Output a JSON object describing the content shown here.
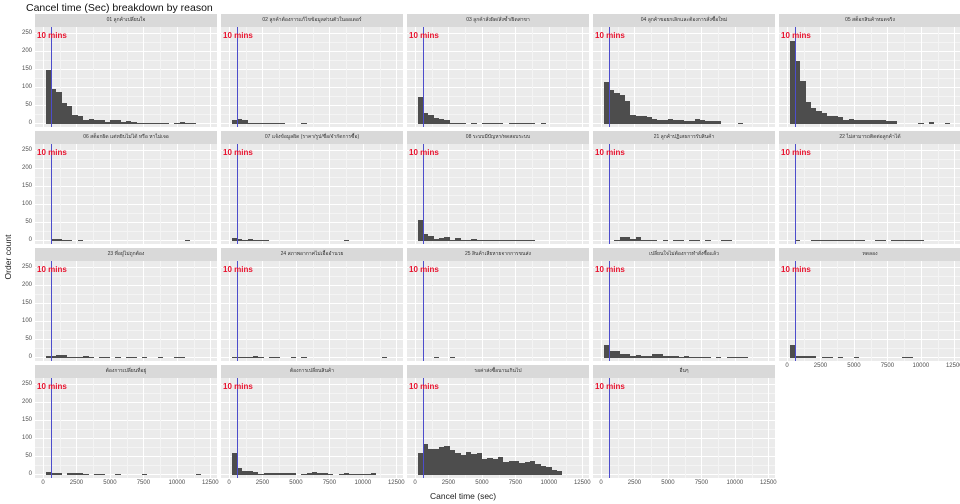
{
  "chart_data": {
    "type": "histogram",
    "title": "Cancel time (Sec) breakdown by reason",
    "xlabel": "Cancel time (sec)",
    "ylabel": "Order count",
    "xlim": [
      0,
      12500
    ],
    "ylim": [
      0,
      260
    ],
    "x_ticks": [
      "0",
      "2500",
      "5000",
      "7500",
      "10000",
      "12500"
    ],
    "y_ticks": [
      "0",
      "50",
      "100",
      "150",
      "200",
      "250"
    ],
    "reference_line": {
      "x": 600,
      "label": "10 mins",
      "color": "#4d4dcc",
      "label_color": "#e8112d"
    },
    "bin_width": 400,
    "facets": [
      {
        "label": "01 ลูกค้าเปลี่ยนใจ",
        "counts": [
          150,
          98,
          88,
          58,
          50,
          25,
          22,
          12,
          15,
          10,
          10,
          5,
          12,
          10,
          5,
          9,
          5,
          3,
          4,
          4,
          4,
          4,
          3,
          0,
          4,
          5,
          3,
          3,
          0,
          0
        ]
      },
      {
        "label": "02 ลูกค้าต้องการแก้ไขข้อมูลส่วนตัวในออเดอร์",
        "counts": [
          10,
          14,
          10,
          3,
          2,
          2,
          2,
          2,
          2,
          3,
          0,
          0,
          0,
          1,
          0,
          0,
          0,
          0,
          0,
          0,
          0,
          0,
          0,
          0,
          0,
          0,
          0,
          0,
          0,
          0
        ]
      },
      {
        "label": "03 ลูกค้าสั่งผิด/สั่งซ้ำ/ผิดสาขา",
        "counts": [
          75,
          30,
          25,
          17,
          13,
          10,
          2,
          3,
          2,
          0,
          3,
          0,
          2,
          2,
          3,
          2,
          0,
          1,
          1,
          1,
          1,
          1,
          0,
          1,
          0,
          0,
          0,
          0,
          0,
          0
        ]
      },
      {
        "label": "04 ลูกค้าขอยกเลิกและต้องการสั่งซื้อใหม่",
        "counts": [
          115,
          95,
          85,
          80,
          65,
          25,
          22,
          22,
          20,
          15,
          12,
          12,
          14,
          10,
          10,
          8,
          8,
          15,
          10,
          8,
          8,
          8,
          0,
          0,
          0,
          1,
          0,
          0,
          0,
          0
        ]
      },
      {
        "label": "05 สต็อกสินค้าหมดจริง",
        "counts": [
          230,
          175,
          120,
          60,
          45,
          35,
          30,
          22,
          22,
          20,
          10,
          15,
          12,
          12,
          10,
          10,
          12,
          10,
          8,
          8,
          0,
          0,
          0,
          0,
          4,
          0,
          5,
          0,
          0,
          4
        ]
      },
      {
        "label": "06 สต็อกผิด แต่หยิบไม่ได้ หรือ หาไม่เจอ",
        "counts": [
          0,
          5,
          5,
          4,
          2,
          0,
          2,
          0,
          0,
          0,
          0,
          0,
          0,
          0,
          0,
          0,
          0,
          0,
          0,
          0,
          0,
          0,
          0,
          0,
          0,
          0,
          2,
          0,
          0,
          0
        ]
      },
      {
        "label": "07 แจ้งข้อมูลผิด (ราคา/รูป/ชื่อ/จำกัดการซื้อ)",
        "counts": [
          8,
          5,
          2,
          5,
          2,
          4,
          3,
          0,
          0,
          0,
          0,
          0,
          0,
          0,
          0,
          0,
          0,
          0,
          0,
          0,
          0,
          2,
          0,
          0,
          0,
          0,
          0,
          0,
          0,
          0
        ]
      },
      {
        "label": "08 ระบบมีปัญหา/ทดสอบระบบ",
        "counts": [
          58,
          20,
          15,
          5,
          8,
          10,
          2,
          8,
          4,
          4,
          5,
          3,
          4,
          2,
          3,
          2,
          1,
          1,
          1,
          1,
          1,
          1,
          0,
          0,
          0,
          0,
          0,
          0,
          0,
          0
        ]
      },
      {
        "label": "21 ลูกค้าปฏิเสธการรับสินค้า",
        "counts": [
          0,
          0,
          2,
          10,
          10,
          5,
          12,
          4,
          2,
          2,
          0,
          3,
          0,
          2,
          2,
          0,
          2,
          1,
          0,
          2,
          0,
          0,
          2,
          1,
          0,
          0,
          0,
          0,
          0,
          0
        ]
      },
      {
        "label": "22 ไม่สามารถติดต่อลูกค้าได้",
        "counts": [
          0,
          1,
          0,
          0,
          1,
          1,
          2,
          1,
          1,
          1,
          1,
          1,
          2,
          1,
          0,
          0,
          1,
          1,
          0,
          1,
          1,
          1,
          1,
          1,
          1,
          0,
          0,
          0,
          0,
          0
        ]
      },
      {
        "label": "23 ที่อยู่ไม่ถูกต้อง",
        "counts": [
          5,
          5,
          8,
          8,
          3,
          3,
          3,
          5,
          2,
          0,
          3,
          2,
          0,
          2,
          0,
          2,
          3,
          0,
          3,
          0,
          0,
          3,
          0,
          0,
          3,
          3,
          0,
          0,
          0,
          0
        ]
      },
      {
        "label": "24 สภาพอากาศไม่เอื้ออำนวย",
        "counts": [
          1,
          1,
          1,
          1,
          5,
          1,
          0,
          1,
          1,
          0,
          0,
          3,
          0,
          3,
          0,
          0,
          0,
          0,
          0,
          0,
          0,
          0,
          0,
          0,
          0,
          0,
          0,
          0,
          3,
          0
        ]
      },
      {
        "label": "25 สินค้าเสียหายจากการขนส่ง",
        "counts": [
          0,
          0,
          0,
          3,
          0,
          0,
          3,
          0,
          0,
          0,
          0,
          0,
          0,
          0,
          0,
          0,
          0,
          0,
          0,
          0,
          0,
          0,
          0,
          0,
          0,
          0,
          0,
          0,
          0,
          0
        ]
      },
      {
        "label": "เปลี่ยนใจไม่ต้องการทำสั่งซื้อแล้ว",
        "counts": [
          35,
          20,
          20,
          10,
          10,
          5,
          8,
          5,
          5,
          10,
          10,
          5,
          5,
          5,
          3,
          5,
          2,
          2,
          2,
          2,
          0,
          2,
          0,
          2,
          2,
          2,
          2,
          0,
          0,
          0
        ]
      },
      {
        "label": "ทดลอง",
        "counts": [
          35,
          5,
          5,
          5,
          5,
          0,
          2,
          3,
          0,
          3,
          0,
          0,
          2,
          0,
          0,
          0,
          0,
          0,
          0,
          0,
          0,
          2,
          2,
          0,
          0,
          0,
          0,
          0,
          0,
          0
        ]
      },
      {
        "label": "ต้องการเปลี่ยนที่อยู่",
        "counts": [
          8,
          5,
          5,
          0,
          5,
          5,
          5,
          2,
          0,
          3,
          3,
          0,
          0,
          3,
          0,
          0,
          0,
          0,
          2,
          0,
          0,
          0,
          0,
          0,
          0,
          0,
          0,
          0,
          3,
          0
        ]
      },
      {
        "label": "ต้องการเปลี่ยนสินค้า",
        "counts": [
          60,
          20,
          12,
          12,
          8,
          3,
          5,
          5,
          5,
          5,
          5,
          5,
          0,
          3,
          5,
          8,
          5,
          5,
          2,
          0,
          3,
          5,
          2,
          2,
          2,
          2,
          5,
          0,
          0,
          0
        ]
      },
      {
        "label": "รอค่าส่งซื้อนานเกินไป",
        "counts": [
          62,
          85,
          72,
          72,
          77,
          80,
          68,
          60,
          55,
          65,
          58,
          60,
          45,
          48,
          45,
          50,
          35,
          38,
          38,
          33,
          35,
          38,
          30,
          25,
          22,
          15,
          12,
          0,
          0,
          0
        ]
      },
      {
        "label": "อื่นๆ",
        "counts": [
          0,
          0,
          0,
          0,
          0,
          0,
          0,
          0,
          0,
          0,
          0,
          0,
          0,
          0,
          0,
          0,
          0,
          0,
          0,
          0,
          0,
          0,
          0,
          0,
          0,
          0,
          0,
          0,
          0,
          0
        ]
      }
    ]
  },
  "page": {
    "title": "Cancel time (Sec) breakdown by reason",
    "xlabel": "Cancel time (sec)",
    "ylabel": "Order count",
    "ref_label": "10 mins"
  }
}
